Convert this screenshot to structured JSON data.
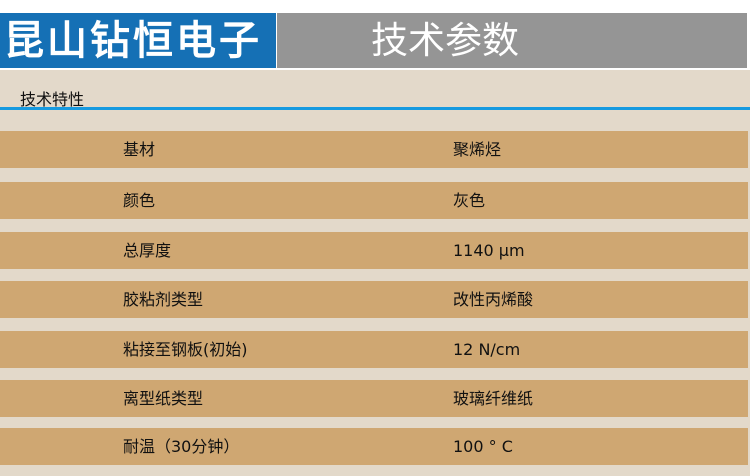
{
  "header": {
    "brand": "昆山钻恒电子",
    "title": "技术参数"
  },
  "section": {
    "title": "技术特性"
  },
  "rows": [
    {
      "label": "基材",
      "value": "聚烯烃"
    },
    {
      "label": "颜色",
      "value": "灰色"
    },
    {
      "label": "总厚度",
      "value": "1140 μm"
    },
    {
      "label": "胶粘剂类型",
      "value": "改性丙烯酸"
    },
    {
      "label": "粘接至钢板(初始)",
      "value": "12 N/cm"
    },
    {
      "label": "离型纸类型",
      "value": "玻璃纤维纸"
    },
    {
      "label": "耐温（30分钟）",
      "value": "100 ° C"
    }
  ],
  "colors": {
    "brand": "#1570b5",
    "header_gray": "#959595",
    "row": "#cfa772",
    "panel": "#e3d9ca",
    "accent_line": "#169ae0"
  }
}
